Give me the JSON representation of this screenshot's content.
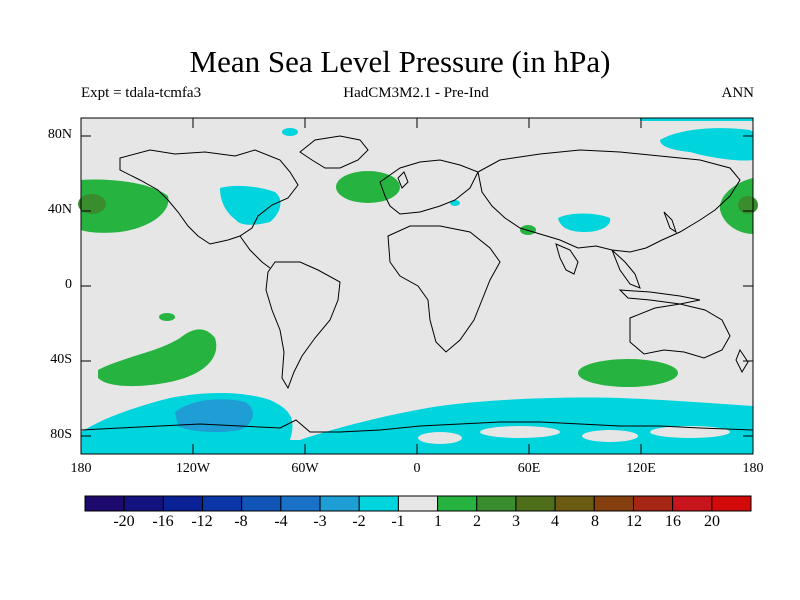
{
  "header": {
    "title": "Mean Sea Level Pressure (in hPa)",
    "expt": "Expt = tdala-tcmfa3",
    "model": "HadCM3M2.1 - Pre-Ind",
    "season": "ANN"
  },
  "axes": {
    "lat_labels": [
      "80N",
      "40N",
      "0",
      "40S",
      "80S"
    ],
    "lon_labels": [
      "180",
      "120W",
      "60W",
      "0",
      "60E",
      "120E",
      "180"
    ]
  },
  "colorbar": {
    "labels": [
      "-20",
      "-16",
      "-12",
      "-8",
      "-4",
      "-3",
      "-2",
      "-1",
      "1",
      "2",
      "3",
      "4",
      "8",
      "12",
      "16",
      "20"
    ],
    "colors": [
      "#1e0a6e",
      "#14127f",
      "#0b2196",
      "#0a36a8",
      "#1154b8",
      "#1a72c8",
      "#1e9ed4",
      "#00d4dc",
      "#e6e6e6",
      "#27b340",
      "#3a8d2e",
      "#4e6e1a",
      "#6b5a12",
      "#864010",
      "#a52614",
      "#c8141c",
      "#d20a0a"
    ]
  },
  "colors": {
    "ocean_background": "#e6e6e6",
    "positive_anomaly": "#27b340",
    "positive_strong": "#3a8d2e",
    "negative_anomaly": "#00d4dc",
    "negative_strong": "#1e9ed4",
    "coastline": "#000000"
  }
}
